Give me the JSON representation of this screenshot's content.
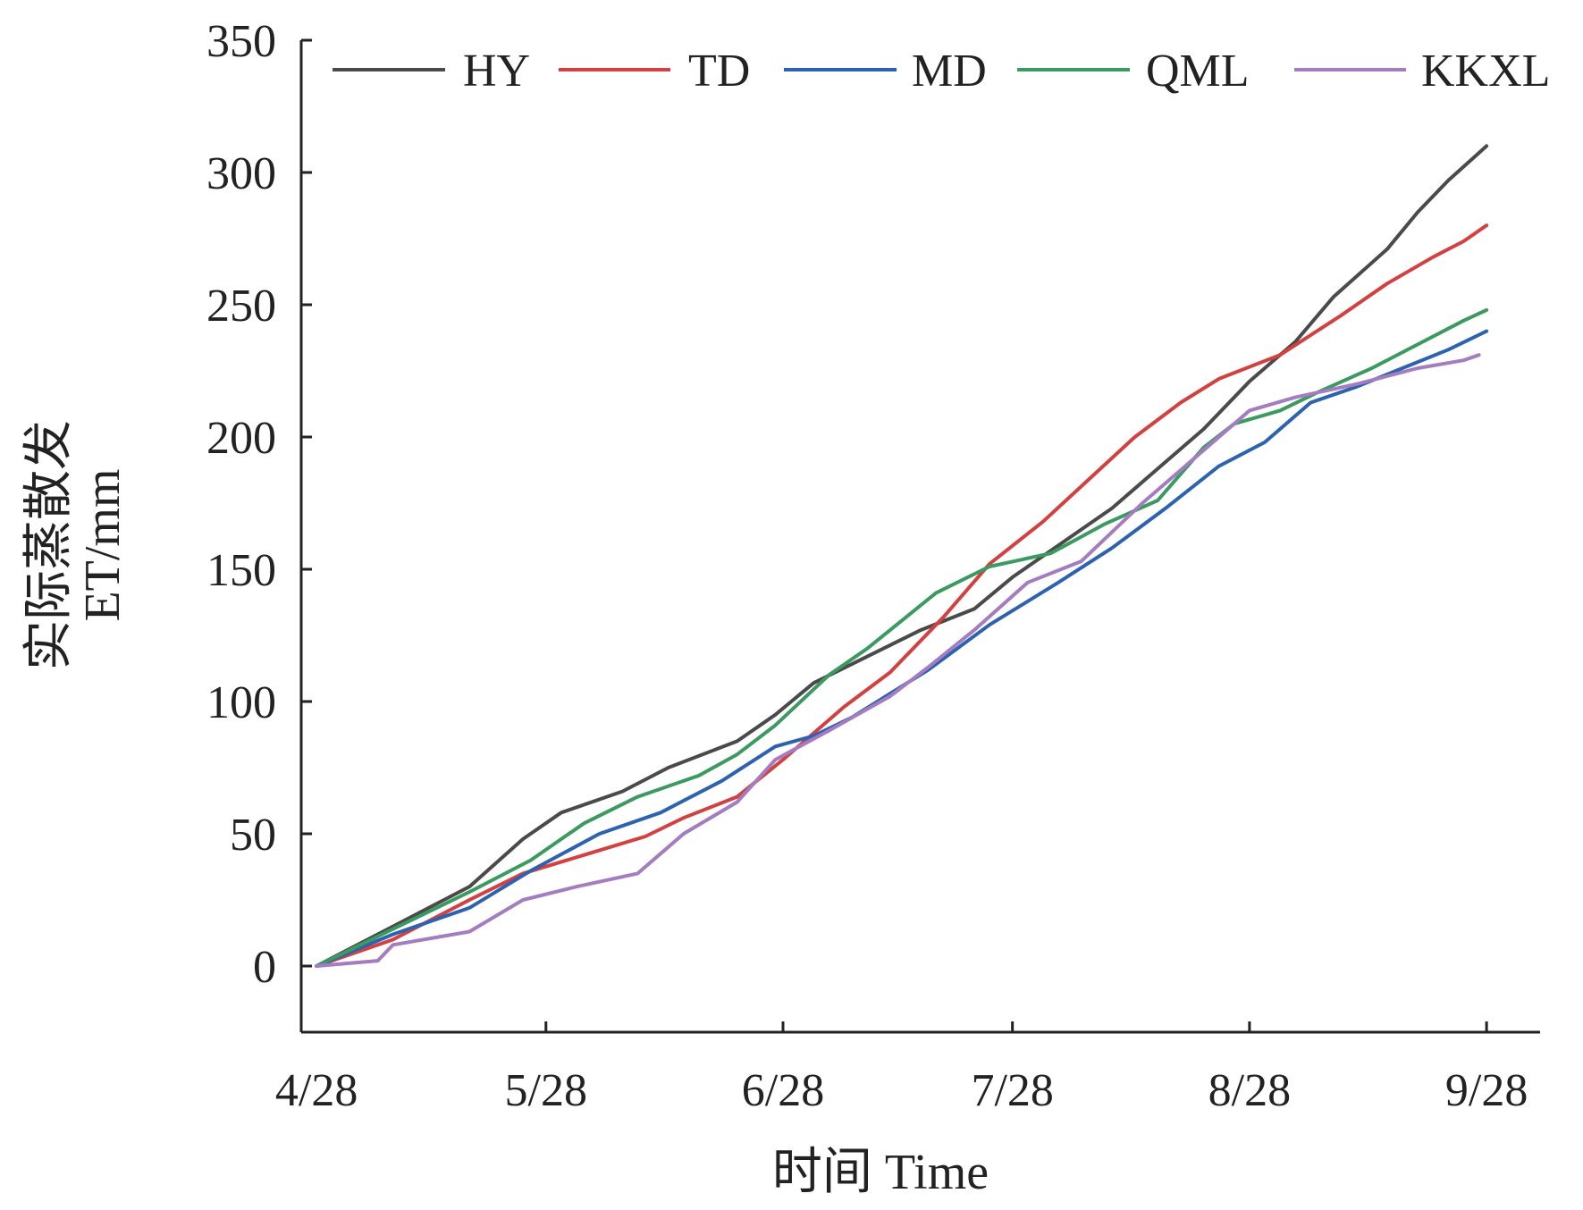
{
  "chart_data": {
    "type": "line",
    "title": "",
    "xlabel": "时间 Time",
    "ylabel_line1": "实际蒸散发",
    "ylabel_line2": "ET/mm",
    "x_start": "4/28",
    "x_tick_labels": [
      "4/28",
      "5/28",
      "6/28",
      "7/28",
      "8/28",
      "9/28"
    ],
    "y_ticks": [
      0,
      50,
      100,
      150,
      200,
      250,
      300,
      350
    ],
    "ylim": [
      -25,
      350
    ],
    "xlim_days": [
      -2,
      160
    ],
    "grid": false,
    "legend_position": "top",
    "series": [
      {
        "name": "HY",
        "color": "#4a4a4a",
        "x": [
          0,
          10,
          20,
          27,
          32,
          40,
          46,
          55,
          60,
          65,
          72,
          79,
          86,
          91,
          98,
          104,
          110,
          116,
          122,
          128,
          133,
          140,
          144,
          148,
          153
        ],
        "y": [
          0,
          15,
          30,
          48,
          58,
          66,
          75,
          85,
          95,
          107,
          117,
          127,
          135,
          147,
          161,
          173,
          188,
          203,
          221,
          236,
          253,
          271,
          285,
          297,
          310
        ]
      },
      {
        "name": "TD",
        "color": "#d24040",
        "x": [
          0,
          10,
          20,
          27,
          35,
          43,
          48,
          55,
          61,
          69,
          75,
          82,
          88,
          95,
          101,
          107,
          113,
          118,
          126,
          134,
          140,
          146,
          150,
          153
        ],
        "y": [
          0,
          10,
          25,
          35,
          42,
          49,
          56,
          64,
          78,
          98,
          111,
          132,
          152,
          168,
          184,
          200,
          213,
          222,
          231,
          246,
          258,
          268,
          274,
          280
        ]
      },
      {
        "name": "MD",
        "color": "#2d62b0",
        "x": [
          0,
          10,
          20,
          28,
          37,
          45,
          53,
          60,
          65,
          70,
          80,
          88,
          97,
          104,
          111,
          118,
          124,
          130,
          136,
          142,
          148,
          153
        ],
        "y": [
          0,
          12,
          22,
          36,
          50,
          58,
          70,
          83,
          87,
          94,
          112,
          129,
          145,
          158,
          173,
          189,
          198,
          213,
          219,
          226,
          233,
          240
        ]
      },
      {
        "name": "QML",
        "color": "#3a9a60",
        "x": [
          0,
          10,
          20,
          28,
          35,
          42,
          50,
          55,
          60,
          67,
          72,
          81,
          88,
          96,
          103,
          110,
          116,
          120,
          126,
          131,
          138,
          144,
          150,
          153
        ],
        "y": [
          0,
          14,
          28,
          40,
          54,
          64,
          72,
          80,
          91,
          110,
          120,
          141,
          151,
          156,
          167,
          176,
          196,
          205,
          210,
          217,
          226,
          235,
          244,
          248
        ]
      },
      {
        "name": "KKXL",
        "color": "#a47cc0",
        "x": [
          0,
          8,
          10,
          20,
          27,
          34,
          42,
          48,
          55,
          60,
          67,
          75,
          80,
          86,
          93,
          100,
          108,
          116,
          122,
          128,
          136,
          144,
          150,
          152
        ],
        "y": [
          0,
          2,
          8,
          13,
          25,
          30,
          35,
          50,
          62,
          78,
          89,
          102,
          113,
          127,
          145,
          153,
          175,
          195,
          210,
          215,
          220,
          226,
          229,
          231
        ]
      }
    ]
  }
}
